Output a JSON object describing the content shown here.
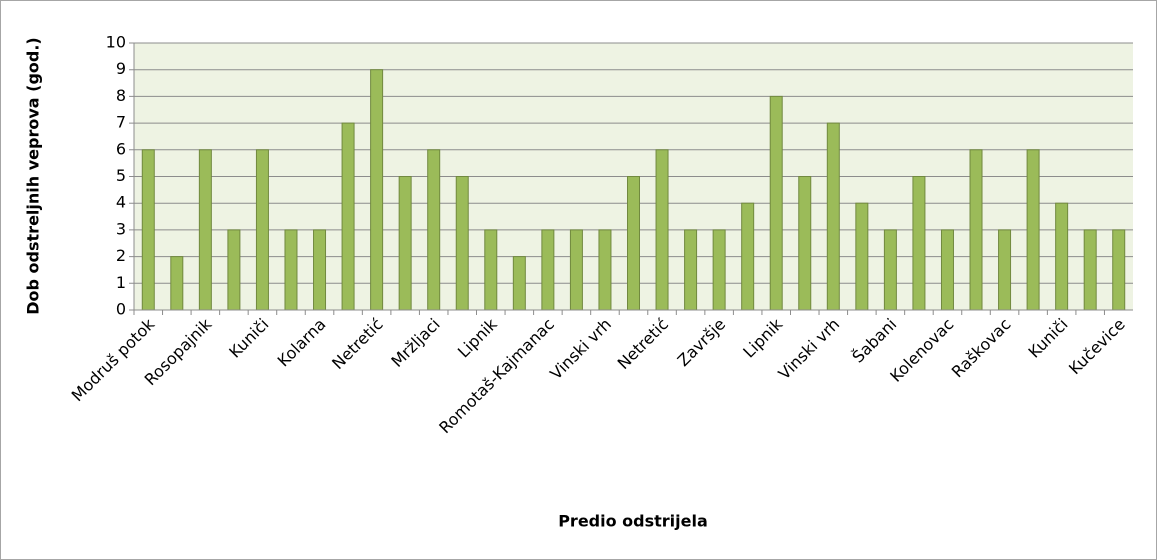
{
  "chart_data": {
    "type": "bar",
    "x_label": "Predio odstrijela",
    "y_label": "Dob odstreljnih veprova (god.)",
    "categories": [
      "Modruš potok",
      null,
      "Rosopajnik",
      null,
      "Kuniči",
      null,
      "Kolarna",
      null,
      "Netretić",
      null,
      "Mržljaci",
      null,
      "Lipnik",
      null,
      "Romotaš-Kajmanac",
      null,
      "Vinski vrh",
      null,
      "Netretić",
      null,
      "Završje",
      null,
      "Lipnik",
      null,
      "Vinski vrh",
      null,
      "Šabani",
      null,
      "Kolenovac",
      null,
      "Raškovac",
      null,
      "Kuniči",
      null,
      "Kučevice"
    ],
    "values": [
      6,
      2,
      6,
      3,
      6,
      3,
      3,
      7,
      9,
      5,
      6,
      5,
      3,
      2,
      3,
      3,
      3,
      5,
      6,
      3,
      3,
      4,
      8,
      5,
      7,
      4,
      3,
      5,
      3,
      6,
      3,
      6,
      4,
      3,
      3
    ],
    "color": "#9bbb59",
    "ylim": [
      0,
      10
    ],
    "yticks": [
      0,
      1,
      2,
      3,
      4,
      5,
      6,
      7,
      8,
      9,
      10
    ],
    "grid": true
  }
}
